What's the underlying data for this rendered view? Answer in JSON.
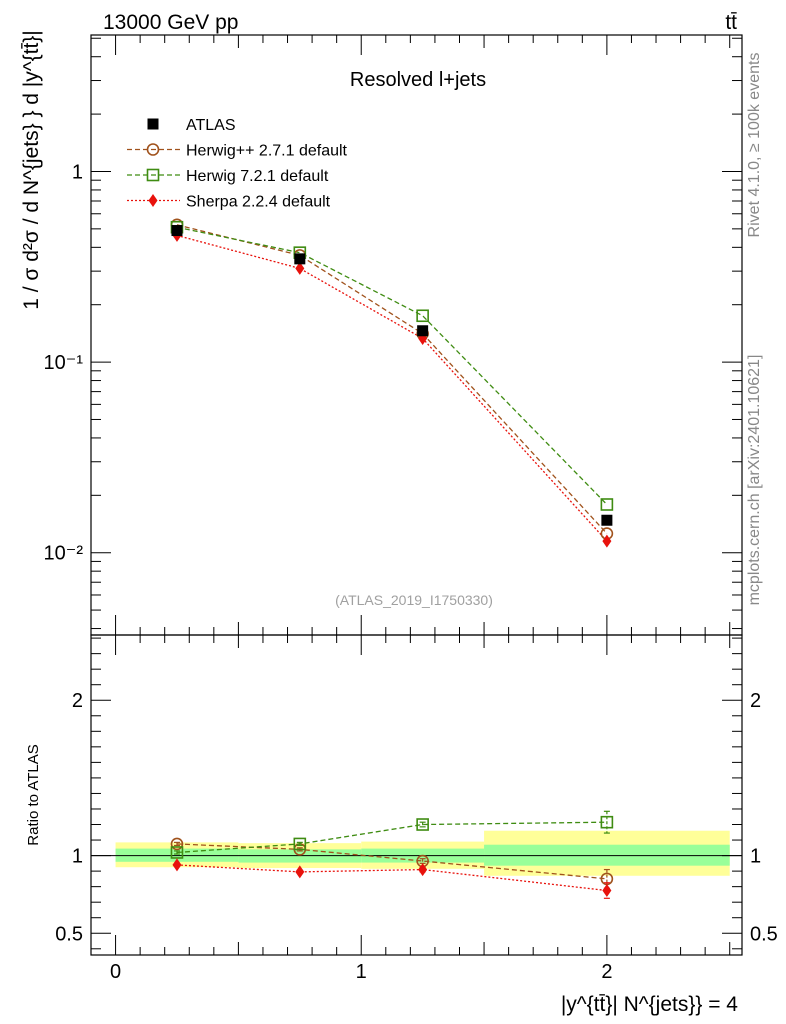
{
  "header": {
    "energy_label": "13000 GeV pp",
    "process_label": "tt̄",
    "side_rivet": "Rivet 4.1.0, ≥ 100k events",
    "side_mcplots": "mcplots.cern.ch [arXiv:2401.10621]"
  },
  "chart_data": [
    {
      "type": "line",
      "panel": "main",
      "title": "Resolved l+jets",
      "analysis_label": "(ATLAS_2019_I1750330)",
      "ylabel": "1 / σ d²σ / d N^{jets} } d |y^{tt̄}|",
      "yscale": "log",
      "xlim": [
        -0.1,
        2.55
      ],
      "ylim": [
        0.0037,
        5.2
      ],
      "y_tick_labels": [
        {
          "value": 1,
          "label": "1"
        },
        {
          "value": 0.1,
          "label": "10⁻¹"
        },
        {
          "value": 0.01,
          "label": "10⁻²"
        }
      ],
      "legend_position": "top-left",
      "x": [
        0.25,
        0.75,
        1.25,
        2.0
      ],
      "series": [
        {
          "name": "ATLAS",
          "marker": "filled-square",
          "color": "#000000",
          "values": [
            0.49,
            0.348,
            0.146,
            0.0148
          ]
        },
        {
          "name": "Herwig++ 2.7.1 default",
          "marker": "open-circle",
          "line": "dashed",
          "color": "#a0521c",
          "values": [
            0.525,
            0.363,
            0.141,
            0.0126
          ]
        },
        {
          "name": "Herwig 7.2.1 default",
          "marker": "open-square",
          "line": "dashed",
          "color": "#3f8c12",
          "values": [
            0.51,
            0.375,
            0.175,
            0.0179
          ]
        },
        {
          "name": "Sherpa 2.2.4 default",
          "marker": "filled-diamond",
          "line": "dotted",
          "color": "#e8120c",
          "values": [
            0.462,
            0.31,
            0.133,
            0.0115
          ]
        }
      ]
    },
    {
      "type": "line",
      "panel": "ratio",
      "ylabel": "Ratio to ATLAS",
      "xlabel": "|y^{tt̄}| N^{jets}} = 4",
      "xlim": [
        -0.1,
        2.55
      ],
      "ylim": [
        0.36,
        2.42
      ],
      "x_tick_labels": [
        {
          "value": 0,
          "label": "0"
        },
        {
          "value": 1,
          "label": "1"
        },
        {
          "value": 2,
          "label": "2"
        }
      ],
      "y_tick_labels": [
        {
          "value": 0.5,
          "label": "0.5"
        },
        {
          "value": 1,
          "label": "1"
        },
        {
          "value": 2,
          "label": "2"
        }
      ],
      "uncertainty_bands": [
        {
          "x_range": [
            0,
            0.5
          ],
          "stat": [
            0.96,
            1.045
          ],
          "total": [
            0.925,
            1.085
          ]
        },
        {
          "x_range": [
            0.5,
            1.0
          ],
          "stat": [
            0.955,
            1.04
          ],
          "total": [
            0.92,
            1.08
          ]
        },
        {
          "x_range": [
            1.0,
            1.5
          ],
          "stat": [
            0.955,
            1.045
          ],
          "total": [
            0.915,
            1.09
          ]
        },
        {
          "x_range": [
            1.5,
            2.5
          ],
          "stat": [
            0.935,
            1.07
          ],
          "total": [
            0.87,
            1.16
          ]
        }
      ],
      "x": [
        0.25,
        0.75,
        1.25,
        2.0
      ],
      "series": [
        {
          "name": "Herwig++ 2.7.1 default",
          "marker": "open-circle",
          "line": "dashed",
          "color": "#a0521c",
          "values": [
            1.075,
            1.04,
            0.965,
            0.85
          ],
          "errors": [
            0.01,
            0.01,
            0.015,
            0.06
          ]
        },
        {
          "name": "Herwig 7.2.1 default",
          "marker": "open-square",
          "line": "dashed",
          "color": "#3f8c12",
          "values": [
            1.02,
            1.075,
            1.2,
            1.215
          ],
          "errors": [
            0.01,
            0.01,
            0.015,
            0.07
          ]
        },
        {
          "name": "Sherpa 2.2.4 default",
          "marker": "filled-diamond",
          "line": "dotted",
          "color": "#e8120c",
          "values": [
            0.94,
            0.895,
            0.91,
            0.775
          ],
          "errors": [
            0.01,
            0.01,
            0.015,
            0.05
          ]
        }
      ]
    }
  ],
  "colors": {
    "band_total": "#ffff99",
    "band_stat": "#99ff99"
  }
}
